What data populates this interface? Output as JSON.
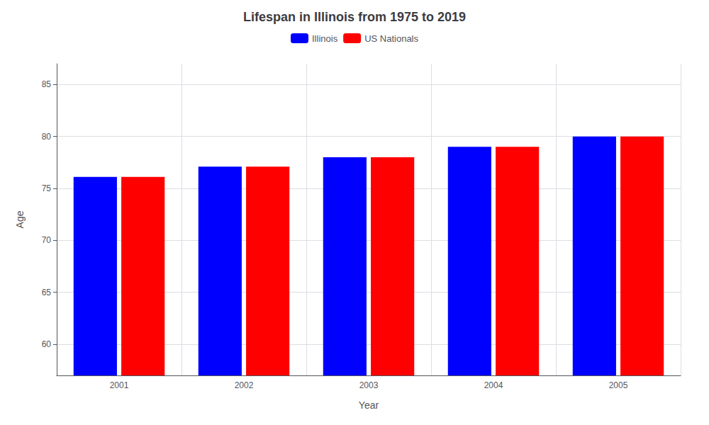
{
  "chart_data": {
    "type": "bar",
    "title": "Lifespan in Illinois from 1975 to 2019",
    "xlabel": "Year",
    "ylabel": "Age",
    "categories": [
      "2001",
      "2002",
      "2003",
      "2004",
      "2005"
    ],
    "series": [
      {
        "name": "Illinois",
        "color": "#0000ff",
        "values": [
          76.1,
          77.1,
          78.0,
          79.0,
          80.0
        ]
      },
      {
        "name": "US Nationals",
        "color": "#ff0000",
        "values": [
          76.1,
          77.1,
          78.0,
          79.0,
          80.0
        ]
      }
    ],
    "ylim": [
      57,
      87
    ],
    "yticks": [
      60,
      65,
      70,
      75,
      80,
      85
    ],
    "grid": true,
    "legend": "top"
  }
}
